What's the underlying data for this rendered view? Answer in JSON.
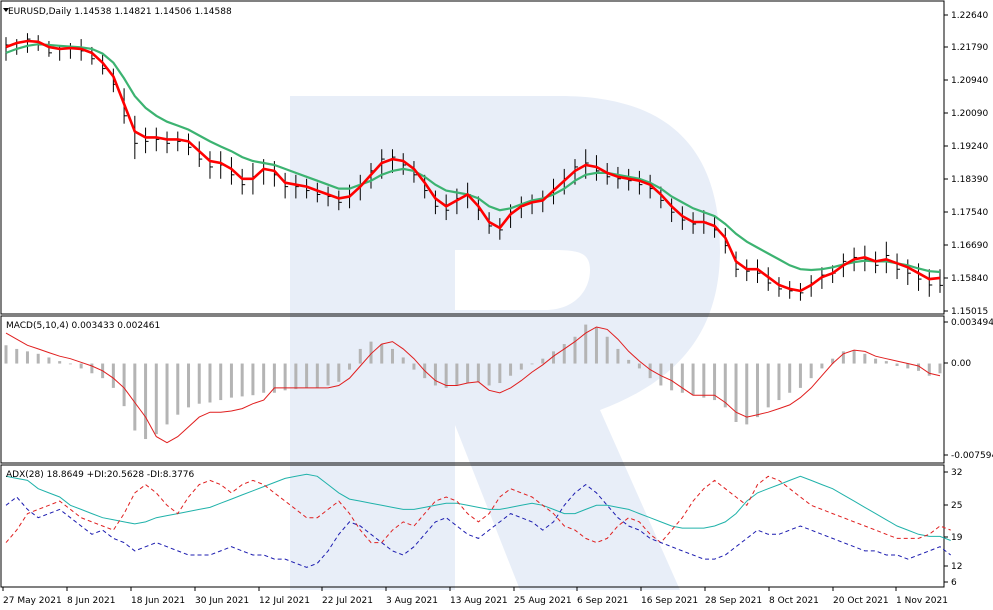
{
  "price_panel": {
    "header": "EURUSD,Daily  1.14538 1.14821 1.14506 1.14588",
    "y_ticks": [
      "1.22640",
      "1.21790",
      "1.20940",
      "1.20090",
      "1.19240",
      "1.18390",
      "1.17540",
      "1.16690",
      "1.15840",
      "1.15015"
    ]
  },
  "macd_panel": {
    "header": "MACD(5,10,4) 0.003433 0.002461",
    "y_ticks": [
      "0.003494",
      "0.00",
      "-0.007594"
    ]
  },
  "adx_panel": {
    "header": "ADX(28) 18.8649 +DI:20.5628 -DI:8.3776",
    "y_ticks": [
      "32",
      "25",
      "19",
      "12",
      "6"
    ]
  },
  "x_ticks": [
    "27 May 2021",
    "8 Jun 2021",
    "18 Jun 2021",
    "30 Jun 2021",
    "12 Jul 2021",
    "22 Jul 2021",
    "3 Aug 2021",
    "13 Aug 2021",
    "25 Aug 2021",
    "6 Sep 2021",
    "16 Sep 2021",
    "28 Sep 2021",
    "8 Oct 2021",
    "20 Oct 2021",
    "1 Nov 2021"
  ],
  "colors": {
    "fast_ma": "#ff0000",
    "slow_ma": "#3cb371",
    "bars": "#000000",
    "histogram": "#b4b4b4",
    "signal": "#e01e1e",
    "adx": "#20b2aa",
    "plus_di": "#e02020",
    "minus_di": "#1c1cb0",
    "watermark": "#e8eef8"
  },
  "watermark": {
    "icon": "broker-logo-r-icon"
  },
  "chart_data": [
    {
      "type": "line",
      "panel": "price",
      "title": "EURUSD,Daily",
      "ylim": [
        1.15015,
        1.2264
      ],
      "series": [
        {
          "role": "fast_ma",
          "values": [
            1.2165,
            1.2175,
            1.218,
            1.2178,
            1.2165,
            1.216,
            1.2162,
            1.216,
            1.215,
            1.2125,
            1.209,
            1.202,
            1.195,
            1.1935,
            1.1935,
            1.193,
            1.193,
            1.1925,
            1.19,
            1.1875,
            1.187,
            1.1855,
            1.183,
            1.183,
            1.1855,
            1.185,
            1.182,
            1.1815,
            1.181,
            1.18,
            1.179,
            1.178,
            1.1785,
            1.181,
            1.184,
            1.187,
            1.188,
            1.1875,
            1.1855,
            1.182,
            1.178,
            1.176,
            1.1775,
            1.179,
            1.176,
            1.172,
            1.1705,
            1.174,
            1.176,
            1.177,
            1.1775,
            1.18,
            1.1825,
            1.185,
            1.1865,
            1.186,
            1.1845,
            1.1835,
            1.183,
            1.1825,
            1.1815,
            1.179,
            1.176,
            1.1735,
            1.172,
            1.172,
            1.171,
            1.168,
            1.162,
            1.16,
            1.16,
            1.158,
            1.156,
            1.155,
            1.1545,
            1.156,
            1.158,
            1.159,
            1.161,
            1.1625,
            1.163,
            1.162,
            1.1625,
            1.1615,
            1.1605,
            1.159,
            1.1575,
            1.1578
          ]
        },
        {
          "role": "slow_ma",
          "values": [
            1.215,
            1.216,
            1.2168,
            1.2172,
            1.217,
            1.2168,
            1.2166,
            1.2164,
            1.216,
            1.2148,
            1.2125,
            1.2085,
            1.204,
            1.201,
            1.199,
            1.1975,
            1.1965,
            1.1955,
            1.194,
            1.1925,
            1.1912,
            1.19,
            1.1885,
            1.1875,
            1.187,
            1.1865,
            1.1855,
            1.1845,
            1.1835,
            1.1825,
            1.1815,
            1.1805,
            1.1805,
            1.1815,
            1.1825,
            1.184,
            1.185,
            1.1855,
            1.185,
            1.1835,
            1.1815,
            1.18,
            1.1795,
            1.179,
            1.178,
            1.176,
            1.175,
            1.1755,
            1.1765,
            1.1775,
            1.178,
            1.179,
            1.1805,
            1.1825,
            1.184,
            1.1845,
            1.1845,
            1.184,
            1.1835,
            1.183,
            1.182,
            1.1805,
            1.1785,
            1.177,
            1.1755,
            1.1745,
            1.1735,
            1.1715,
            1.169,
            1.167,
            1.1655,
            1.164,
            1.1625,
            1.161,
            1.16,
            1.1598,
            1.16,
            1.1605,
            1.1612,
            1.1618,
            1.1622,
            1.162,
            1.162,
            1.1615,
            1.161,
            1.1602,
            1.1595,
            1.1593
          ]
        }
      ],
      "ohlc_bars": {
        "high": [
          1.219,
          1.2185,
          1.22,
          1.2195,
          1.218,
          1.217,
          1.2175,
          1.2185,
          1.2165,
          1.2145,
          1.211,
          1.206,
          1.199,
          1.196,
          1.196,
          1.195,
          1.195,
          1.1945,
          1.1925,
          1.19,
          1.19,
          1.1885,
          1.1855,
          1.187,
          1.188,
          1.1875,
          1.1845,
          1.184,
          1.183,
          1.182,
          1.181,
          1.18,
          1.1815,
          1.184,
          1.187,
          1.1905,
          1.1905,
          1.1895,
          1.1875,
          1.184,
          1.18,
          1.179,
          1.1805,
          1.182,
          1.1785,
          1.1745,
          1.173,
          1.1765,
          1.1785,
          1.179,
          1.18,
          1.183,
          1.1855,
          1.188,
          1.1905,
          1.189,
          1.187,
          1.186,
          1.1855,
          1.185,
          1.184,
          1.181,
          1.178,
          1.176,
          1.1745,
          1.175,
          1.1735,
          1.1705,
          1.1645,
          1.1625,
          1.1625,
          1.1605,
          1.158,
          1.157,
          1.1565,
          1.1585,
          1.1605,
          1.161,
          1.164,
          1.1655,
          1.166,
          1.1645,
          1.167,
          1.164,
          1.1625,
          1.1615,
          1.16,
          1.16
        ],
        "low": [
          1.213,
          1.2145,
          1.215,
          1.2155,
          1.214,
          1.213,
          1.2135,
          1.213,
          1.212,
          1.2095,
          1.205,
          1.197,
          1.188,
          1.1895,
          1.19,
          1.1895,
          1.19,
          1.189,
          1.186,
          1.183,
          1.183,
          1.1815,
          1.179,
          1.179,
          1.1815,
          1.181,
          1.178,
          1.178,
          1.178,
          1.177,
          1.176,
          1.175,
          1.1755,
          1.1775,
          1.1805,
          1.183,
          1.1845,
          1.184,
          1.182,
          1.178,
          1.174,
          1.1725,
          1.174,
          1.1755,
          1.1725,
          1.169,
          1.1675,
          1.1705,
          1.173,
          1.174,
          1.1745,
          1.1765,
          1.179,
          1.1815,
          1.183,
          1.1825,
          1.1815,
          1.1805,
          1.18,
          1.179,
          1.178,
          1.1755,
          1.172,
          1.17,
          1.169,
          1.169,
          1.168,
          1.164,
          1.158,
          1.157,
          1.1565,
          1.1545,
          1.153,
          1.1525,
          1.152,
          1.153,
          1.155,
          1.1565,
          1.158,
          1.1595,
          1.1595,
          1.159,
          1.159,
          1.1575,
          1.156,
          1.1545,
          1.153,
          1.154
        ],
        "close": [
          1.217,
          1.2175,
          1.2185,
          1.217,
          1.215,
          1.216,
          1.2165,
          1.2155,
          1.2135,
          1.211,
          1.207,
          1.199,
          1.192,
          1.1925,
          1.193,
          1.192,
          1.1925,
          1.191,
          1.188,
          1.186,
          1.1865,
          1.184,
          1.1815,
          1.1835,
          1.1855,
          1.184,
          1.181,
          1.181,
          1.18,
          1.179,
          1.1785,
          1.177,
          1.179,
          1.1815,
          1.185,
          1.188,
          1.1885,
          1.1865,
          1.184,
          1.18,
          1.176,
          1.175,
          1.178,
          1.179,
          1.175,
          1.171,
          1.17,
          1.1745,
          1.176,
          1.177,
          1.178,
          1.1805,
          1.183,
          1.186,
          1.187,
          1.185,
          1.1835,
          1.183,
          1.1825,
          1.1815,
          1.1805,
          1.1775,
          1.1745,
          1.1725,
          1.1715,
          1.172,
          1.17,
          1.166,
          1.16,
          1.1595,
          1.159,
          1.1565,
          1.155,
          1.1545,
          1.154,
          1.1565,
          1.1585,
          1.159,
          1.162,
          1.163,
          1.1625,
          1.161,
          1.1635,
          1.16,
          1.159,
          1.1575,
          1.156,
          1.1559
        ]
      }
    },
    {
      "type": "bar",
      "panel": "macd",
      "title": "MACD(5,10,4)",
      "ylim": [
        -0.007594,
        0.003494
      ],
      "histogram": [
        0.0015,
        0.0012,
        0.001,
        0.0008,
        0.0005,
        0.0002,
        0.0,
        -0.0004,
        -0.0008,
        -0.0012,
        -0.002,
        -0.0035,
        -0.0055,
        -0.0062,
        -0.0058,
        -0.005,
        -0.0042,
        -0.0036,
        -0.0033,
        -0.0032,
        -0.003,
        -0.0028,
        -0.0027,
        -0.0026,
        -0.0024,
        -0.0024,
        -0.0022,
        -0.0021,
        -0.002,
        -0.002,
        -0.0018,
        -0.0015,
        -0.0005,
        0.0012,
        0.0018,
        0.0016,
        0.0012,
        0.0005,
        -0.0005,
        -0.0012,
        -0.0018,
        -0.002,
        -0.0018,
        -0.0016,
        -0.0015,
        -0.0018,
        -0.0016,
        -0.001,
        -0.0005,
        0.0,
        0.0004,
        0.001,
        0.0016,
        0.0022,
        0.0032,
        0.003,
        0.0022,
        0.0012,
        0.0003,
        -0.0004,
        -0.0012,
        -0.0018,
        -0.0022,
        -0.0024,
        -0.0026,
        -0.0028,
        -0.003,
        -0.0036,
        -0.0048,
        -0.005,
        -0.0044,
        -0.0036,
        -0.003,
        -0.0024,
        -0.002,
        -0.0012,
        -0.0004,
        0.0004,
        0.001,
        0.0011,
        0.0008,
        0.0004,
        0.0002,
        -0.0002,
        -0.0004,
        -0.0006,
        -0.001,
        -0.0008
      ],
      "signal": [
        0.0025,
        0.002,
        0.0015,
        0.0012,
        0.0009,
        0.0006,
        0.0004,
        0.0001,
        -0.0002,
        -0.0006,
        -0.0012,
        -0.002,
        -0.0032,
        -0.0044,
        -0.006,
        -0.0065,
        -0.006,
        -0.0052,
        -0.0044,
        -0.004,
        -0.004,
        -0.0039,
        -0.0037,
        -0.0033,
        -0.003,
        -0.002,
        -0.002,
        -0.002,
        -0.002,
        -0.002,
        -0.002,
        -0.0018,
        -0.0012,
        -0.0002,
        0.0008,
        0.0016,
        0.0018,
        0.0012,
        0.0004,
        -0.0006,
        -0.0014,
        -0.0018,
        -0.0018,
        -0.0016,
        -0.0015,
        -0.0022,
        -0.0024,
        -0.002,
        -0.0014,
        -0.0007,
        -0.0001,
        0.0006,
        0.0012,
        0.0018,
        0.0025,
        0.003,
        0.0028,
        0.002,
        0.001,
        0.0002,
        -0.0005,
        -0.001,
        -0.0014,
        -0.002,
        -0.0026,
        -0.0026,
        -0.0026,
        -0.0032,
        -0.004,
        -0.0044,
        -0.0042,
        -0.004,
        -0.0037,
        -0.0034,
        -0.0028,
        -0.002,
        -0.001,
        0.0,
        0.0008,
        0.0011,
        0.001,
        0.0006,
        0.0004,
        0.0002,
        0.0,
        -0.0002,
        -0.0008,
        -0.001
      ]
    },
    {
      "type": "line",
      "panel": "adx",
      "title": "ADX(28)",
      "ylim": [
        5,
        33
      ],
      "series": [
        {
          "role": "adx",
          "values": [
            31,
            30.5,
            30,
            28,
            27,
            26,
            24,
            23,
            22,
            21,
            20.5,
            20,
            19.5,
            20,
            21,
            21.5,
            22,
            22.5,
            23,
            23.5,
            24.5,
            25.5,
            26.5,
            27.5,
            28.5,
            29.5,
            30.5,
            31,
            31.5,
            31,
            29,
            27,
            25.5,
            25,
            24.5,
            24,
            23.5,
            23,
            23,
            23.5,
            24,
            24.5,
            24.5,
            24,
            23.5,
            23,
            23,
            23.5,
            24,
            24.5,
            24,
            23,
            22,
            22,
            23,
            24,
            24,
            23.5,
            23,
            22,
            21,
            20,
            19,
            18.5,
            18.5,
            18.5,
            19,
            20,
            22,
            25,
            27,
            28,
            29,
            30,
            31,
            30,
            29,
            28,
            26.5,
            25,
            23.5,
            22,
            20.5,
            19,
            18,
            17,
            16.5,
            16.5,
            15.5
          ]
        },
        {
          "role": "plus_di",
          "values": [
            15,
            18,
            22,
            23,
            24,
            25,
            23,
            21,
            20,
            19,
            18,
            22,
            27,
            29,
            27,
            24,
            22,
            26,
            29,
            30,
            29,
            27,
            29,
            30,
            29,
            27,
            25,
            23,
            21,
            21,
            23,
            25,
            22,
            18,
            15,
            15,
            18,
            20,
            19,
            22,
            25,
            26,
            25,
            22,
            20,
            22,
            26,
            28,
            27,
            26,
            24,
            22,
            19,
            18,
            16,
            15,
            16,
            19,
            21,
            20,
            17,
            15,
            18,
            21,
            25,
            28,
            30,
            28,
            26,
            24,
            29,
            31,
            30,
            28,
            26,
            24,
            23,
            22,
            21,
            20,
            19,
            18,
            17,
            16,
            16,
            16,
            17,
            19,
            18
          ]
        },
        {
          "role": "minus_di",
          "values": [
            24,
            26,
            23,
            21,
            22,
            23,
            21,
            19,
            17,
            18,
            16,
            15,
            13,
            14,
            15,
            14,
            13,
            12,
            12,
            12,
            13,
            14,
            13,
            12,
            12,
            11,
            11,
            10,
            9,
            10,
            13,
            17,
            20,
            19,
            17,
            15,
            13,
            12,
            14,
            17,
            20,
            21,
            19,
            17,
            16,
            18,
            20,
            22,
            21,
            20,
            18,
            20,
            24,
            27,
            29,
            27,
            24,
            21,
            19,
            18,
            16,
            15,
            14,
            13,
            12,
            11,
            11,
            12,
            14,
            16,
            18,
            17,
            17,
            18,
            19,
            18,
            17,
            16,
            15,
            14,
            13,
            13,
            12,
            12,
            11,
            12,
            13,
            14,
            12
          ]
        }
      ]
    }
  ]
}
